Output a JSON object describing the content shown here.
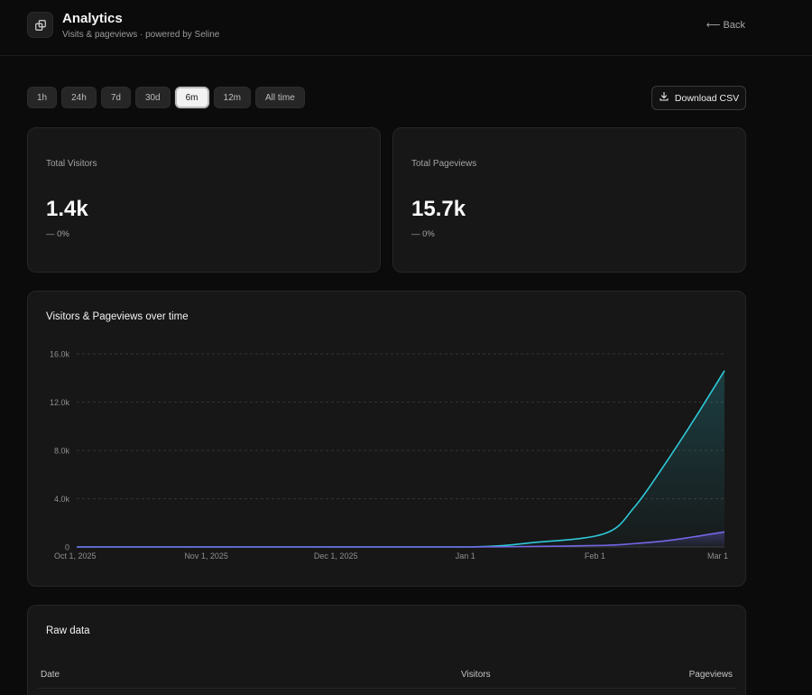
{
  "header": {
    "icon": "link-icon",
    "title": "Analytics",
    "subtitle": "Visits & pageviews · powered by Seline",
    "back_label": "Back"
  },
  "ranges": [
    {
      "label": "1h",
      "active": false
    },
    {
      "label": "24h",
      "active": false
    },
    {
      "label": "7d",
      "active": false
    },
    {
      "label": "30d",
      "active": false
    },
    {
      "label": "6m",
      "active": true
    },
    {
      "label": "12m",
      "active": false
    },
    {
      "label": "All time",
      "active": false
    }
  ],
  "download": {
    "label": "Download CSV",
    "icon": "download-icon"
  },
  "stats": {
    "visitors": {
      "label": "Total Visitors",
      "value": "1.4k",
      "change": "0%"
    },
    "pageviews": {
      "label": "Total Pageviews",
      "value": "15.7k",
      "change": "0%"
    }
  },
  "chart_title": "Visitors & Pageviews over time",
  "chart_data": {
    "type": "area",
    "x_ticks": [
      "Oct 1, 2025",
      "Nov 1, 2025",
      "Dec 1, 2025",
      "Jan 1",
      "Feb 1",
      "Mar 1"
    ],
    "y_ticks": [
      "0",
      "4.0k",
      "8.0k",
      "12.0k",
      "16.0k"
    ],
    "ylim": [
      0,
      16000
    ],
    "grid": true,
    "x": [
      "2025-10-01",
      "2025-11-01",
      "2025-12-01",
      "2026-01-01",
      "2026-01-15",
      "2026-02-01",
      "2026-02-08",
      "2026-02-15",
      "2026-02-22",
      "2026-03-01"
    ],
    "series": [
      {
        "values": [
          0,
          0,
          0,
          0,
          350,
          1100,
          3300,
          6800,
          10600,
          14600
        ],
        "color": "#2ec9d9"
      },
      {
        "values": [
          0,
          0,
          0,
          0,
          40,
          130,
          280,
          500,
          850,
          1250
        ],
        "color": "#7367e6"
      }
    ]
  },
  "raw_data": {
    "title": "Raw data",
    "columns": [
      "Date",
      "Visitors",
      "Pageviews"
    ]
  }
}
